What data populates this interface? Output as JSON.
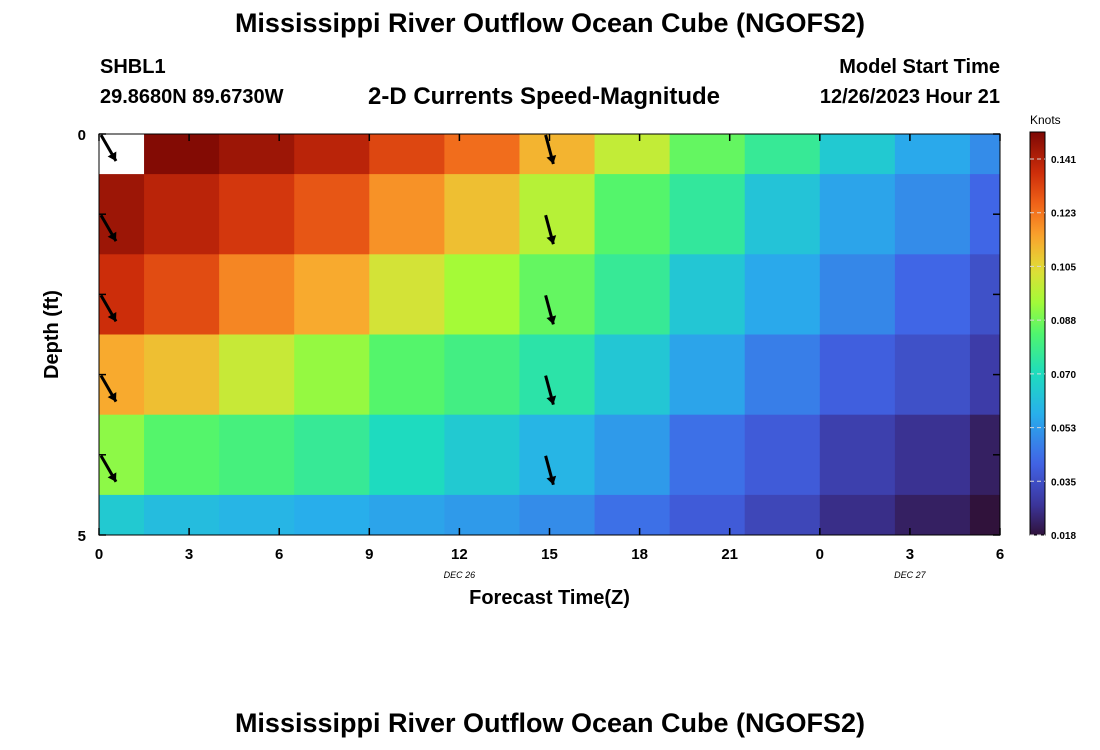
{
  "title": "Mississippi River Outflow Ocean Cube (NGOFS2)",
  "bottom_title": "Mississippi River Outflow Ocean Cube (NGOFS2)",
  "station": {
    "name": "SHBL1",
    "coords": "29.8680N  89.6730W"
  },
  "model": {
    "label": "Model Start Time",
    "time": "12/26/2023 Hour 21"
  },
  "chart_data": {
    "type": "heatmap",
    "subtitle": "2-D Currents Speed-Magnitude",
    "xlabel": "Forecast Time(Z)",
    "ylabel": "Depth (ft)",
    "x_ticks": [
      "0",
      "3",
      "6",
      "9",
      "12",
      "15",
      "18",
      "21",
      "0",
      "3",
      "6"
    ],
    "x_tick_hours": [
      0,
      3,
      6,
      9,
      12,
      15,
      18,
      21,
      24,
      27,
      30
    ],
    "x_range_hours": [
      0,
      30
    ],
    "date_labels": [
      {
        "text": "DEC 26",
        "hour": 12
      },
      {
        "text": "DEC 27",
        "hour": 27
      }
    ],
    "y_ticks": [
      "0",
      "5"
    ],
    "y_range": [
      0,
      5
    ],
    "time_columns_hours": [
      0,
      3,
      5,
      8,
      10,
      13,
      15,
      18,
      20,
      23,
      25,
      28,
      30
    ],
    "depth_layers": 5,
    "colorbar": {
      "units": "Knots",
      "min": 0.018,
      "max": 0.149,
      "ticks": [
        "0.141",
        "0.123",
        "0.105",
        "0.088",
        "0.070",
        "0.053",
        "0.035",
        "0.018"
      ]
    },
    "speed_knots": [
      [
        null,
        0.148,
        0.144,
        0.139,
        0.131,
        0.124,
        0.112,
        0.099,
        0.086,
        0.077,
        0.065,
        0.056,
        0.05
      ],
      [
        0.144,
        0.139,
        0.134,
        0.128,
        0.118,
        0.11,
        0.097,
        0.084,
        0.076,
        0.063,
        0.055,
        0.05,
        0.042
      ],
      [
        0.136,
        0.13,
        0.12,
        0.114,
        0.102,
        0.094,
        0.086,
        0.077,
        0.064,
        0.056,
        0.049,
        0.042,
        0.036
      ],
      [
        0.114,
        0.11,
        0.1,
        0.092,
        0.084,
        0.08,
        0.074,
        0.064,
        0.055,
        0.047,
        0.04,
        0.036,
        0.03
      ],
      [
        0.091,
        0.084,
        0.081,
        0.077,
        0.07,
        0.065,
        0.059,
        0.053,
        0.044,
        0.039,
        0.031,
        0.027,
        0.022
      ],
      [
        0.065,
        0.061,
        0.059,
        0.057,
        0.055,
        0.053,
        0.05,
        0.044,
        0.039,
        0.033,
        0.026,
        0.022,
        0.018
      ]
    ],
    "vectors": {
      "hours": [
        0,
        15
      ],
      "depth_rows": [
        0,
        1,
        2,
        3,
        4
      ],
      "directions_deg": [
        [
          150,
          165
        ],
        [
          150,
          165
        ],
        [
          150,
          165
        ],
        [
          150,
          165
        ],
        [
          150,
          165
        ]
      ]
    }
  }
}
